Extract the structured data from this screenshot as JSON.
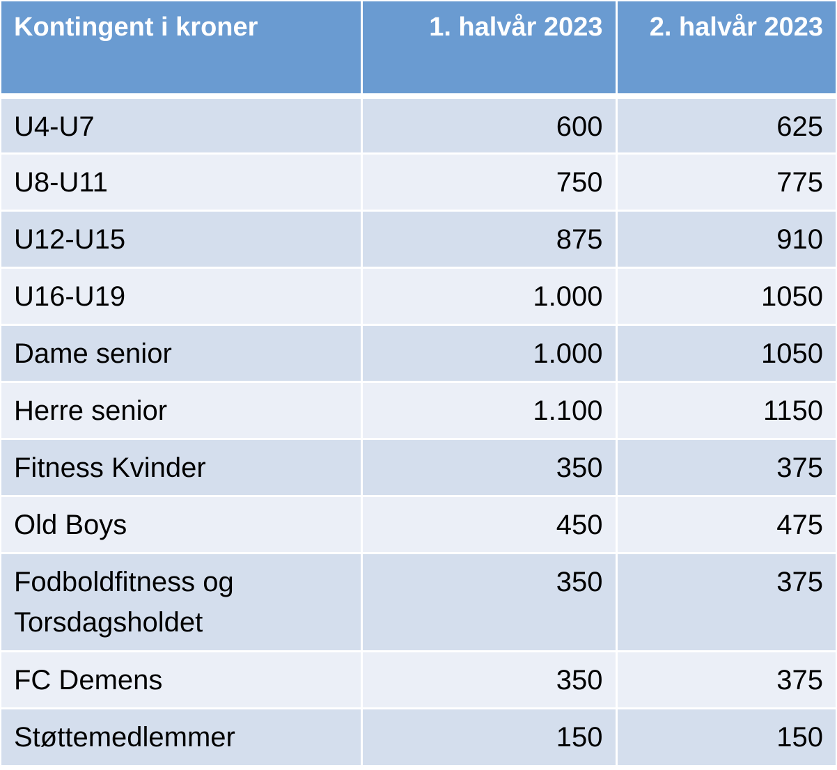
{
  "table": {
    "headers": [
      "Kontingent i kroner",
      "1. halvår 2023",
      "2. halvår 2023"
    ],
    "rows": [
      {
        "label": "U4-U7",
        "h1": "600",
        "h2": "625"
      },
      {
        "label": "U8-U11",
        "h1": "750",
        "h2": "775"
      },
      {
        "label": "U12-U15",
        "h1": "875",
        "h2": "910"
      },
      {
        "label": "U16-U19",
        "h1": "1.000",
        "h2": "1050"
      },
      {
        "label": "Dame senior",
        "h1": "1.000",
        "h2": "1050"
      },
      {
        "label": "Herre senior",
        "h1": "1.100",
        "h2": "1150"
      },
      {
        "label": "Fitness Kvinder",
        "h1": "350",
        "h2": "375"
      },
      {
        "label": "Old Boys",
        "h1": "450",
        "h2": "475"
      },
      {
        "label_line1": "Fodboldfitness og",
        "label_line2": "Torsdagsholdet",
        "h1": "350",
        "h2": "375"
      },
      {
        "label": "FC Demens",
        "h1": "350",
        "h2": "375"
      },
      {
        "label": "Støttemedlemmer",
        "h1": "150",
        "h2": "150"
      }
    ]
  },
  "colors": {
    "header_bg": "#6a9bd1",
    "row_dark": "#d4deed",
    "row_light": "#ebeff7"
  }
}
